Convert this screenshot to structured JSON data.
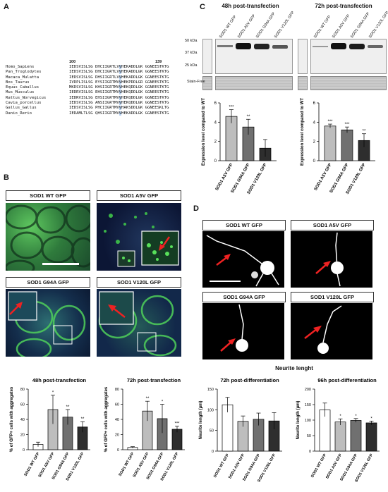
{
  "panel_letters": {
    "a": "A",
    "b": "B",
    "c": "C",
    "d": "D"
  },
  "panel_a": {
    "pos_start": "100",
    "pos_end": "139",
    "species": [
      "Homo_Sapiens",
      "Pan_Troglodytes",
      "Macaca_Mulatta",
      "Bos_Taurus",
      "Equus_Caballus",
      "Mus_Musculus",
      "Rattus_Norvegicus",
      "Cavia_porcellus",
      "Gallus_Gallus",
      "Danio_Rerio"
    ],
    "seq_pre": [
      "IEDSVISLSG DHCIIGRTLV",
      "IEDSVISLSG DHCIIGRTLV",
      "IEDSVISLSG DHSIIGRTLV",
      "IVDPLISLSG EYSIIGRTMV",
      "MKDSVISLSG KHSIIGRTMV",
      "IEDRVISLSG EHSIIGRTMV",
      "IEDRVISLSG EHSIIGRTMV",
      "IEDSVISLSG ANSIIGRTMV",
      "IEDSVISLSG PHCIIGRTMV",
      "IEDAMLTLSG QHSIIGRTMV"
    ],
    "seq_hl": [
      "V",
      "V",
      "V",
      "V",
      "V",
      "V",
      "V",
      "V",
      "V",
      "V"
    ],
    "seq_post": [
      "HEKADDLGK GGNEESTKTG",
      "HEKADDLGK GGNEESTKTG",
      "HEKADDLGK GGNEESTKTG",
      "HEKPDDLGR GGNEESTKTG",
      "HEKQDDLGK GGNEESTKTG",
      "HEKQDDLGK GGNEESTKTG",
      "HEKQDDLGK GGNEESTKTG",
      "HEKQDDLGK GGNEESTKTG",
      "HAKSDDLGK GGNEESKLTG",
      "HEKADDLGK GGNEESTKTG"
    ]
  },
  "panel_b": {
    "tags": [
      "SOD1 WT GFP",
      "SOD1 A5V GFP",
      "SOD1 G94A GFP",
      "SOD1 V120L GFP"
    ]
  },
  "panel_c": {
    "titles": [
      "48h post-transfection",
      "72h post-transfection"
    ],
    "lanes": [
      "SOD1 WT GFP",
      "SOD1 A5V GFP",
      "SOD1 G94A GFP",
      "SOD1 V120L GFP"
    ],
    "markers": [
      "50 kDa",
      "37 kDa",
      "25 kDa"
    ],
    "stain_label": "Stain-Free",
    "ylabel": "Expression level compared to WT",
    "colors": {
      "a5v": "#bdbdbd",
      "g94a": "#707070",
      "v120l": "#2e2e2e",
      "wt": "#ffffff"
    }
  },
  "panel_d": {
    "tags": [
      "SOD1 WT GFP",
      "SOD1 A5V GFP",
      "SOD1 G94A GFP",
      "SOD1 V120L GFP"
    ],
    "section_title": "Neurite lenght"
  },
  "chart_data": [
    {
      "type": "bar",
      "id": "c48",
      "title": "",
      "ylabel": "Expression level compared to WT",
      "categories": [
        "SOD1 A5V GFP",
        "SOD1 G94A GFP",
        "SOD1 V120L GFP"
      ],
      "values": [
        4.6,
        3.5,
        1.3
      ],
      "errors": [
        0.7,
        0.8,
        0.9
      ],
      "sig": [
        "***",
        "**",
        ""
      ],
      "ylim": [
        0,
        6
      ],
      "yticks": [
        0,
        2,
        4,
        6
      ]
    },
    {
      "type": "bar",
      "id": "c72",
      "title": "",
      "ylabel": "Expression level compared to WT",
      "categories": [
        "SOD1 A5V GFP",
        "SOD1 G94A GFP",
        "SOD1 V120L GFP"
      ],
      "values": [
        3.6,
        3.2,
        2.1
      ],
      "errors": [
        0.2,
        0.3,
        0.7
      ],
      "sig": [
        "***",
        "***",
        "**"
      ],
      "ylim": [
        0,
        6
      ],
      "yticks": [
        0,
        2,
        4,
        6
      ]
    },
    {
      "type": "bar",
      "id": "b48",
      "title": "48h post-transfection",
      "ylabel": "% of GFP+ cells with aggregates",
      "categories": [
        "SOD1 WT GFP",
        "SOD1 A5V GFP",
        "SOD1 G94A GFP",
        "SOD1 V120L GFP"
      ],
      "values": [
        7,
        53,
        43,
        30
      ],
      "errors": [
        3,
        19,
        10,
        7
      ],
      "sig": [
        "",
        "*",
        "**",
        "**"
      ],
      "ylim": [
        0,
        80
      ],
      "yticks": [
        0,
        20,
        40,
        60,
        80
      ]
    },
    {
      "type": "bar",
      "id": "b72",
      "title": "72h post-transfection",
      "ylabel": "% of GFP+ cells with aggregates",
      "categories": [
        "SOD1 WT GFP",
        "SOD1 A5V GFP",
        "SOD1 G94A GFP",
        "SOD1 V120L GFP"
      ],
      "values": [
        3,
        51,
        41,
        27
      ],
      "errors": [
        1,
        13,
        19,
        4
      ],
      "sig": [
        "",
        "**",
        "*",
        "***"
      ],
      "ylim": [
        0,
        80
      ],
      "yticks": [
        0,
        20,
        40,
        60,
        80
      ]
    },
    {
      "type": "bar",
      "id": "d72",
      "title": "72h post-differentiation",
      "ylabel": "Neurite length (µm)",
      "categories": [
        "SOD1 WT GFP",
        "SOD1 A5V GFP",
        "SOD1 G94A GFP",
        "SOD1 V120L GFP"
      ],
      "values": [
        112,
        72,
        77,
        73
      ],
      "errors": [
        18,
        13,
        15,
        20
      ],
      "sig": [
        "",
        "",
        "",
        ""
      ],
      "ylim": [
        0,
        150
      ],
      "yticks": [
        0,
        50,
        100,
        150
      ]
    },
    {
      "type": "bar",
      "id": "d96",
      "title": "96h post-differentiation",
      "ylabel": "Neurite length (µm)",
      "categories": [
        "SOD1 WT GFP",
        "SOD1 A5V GFP",
        "SOD1 G94A GFP",
        "SOD1 V120L GFP"
      ],
      "values": [
        133,
        94,
        99,
        91
      ],
      "errors": [
        22,
        10,
        6,
        6
      ],
      "sig": [
        "",
        "*",
        "*",
        "*"
      ],
      "ylim": [
        0,
        200
      ],
      "yticks": [
        0,
        50,
        100,
        150,
        200
      ]
    }
  ]
}
